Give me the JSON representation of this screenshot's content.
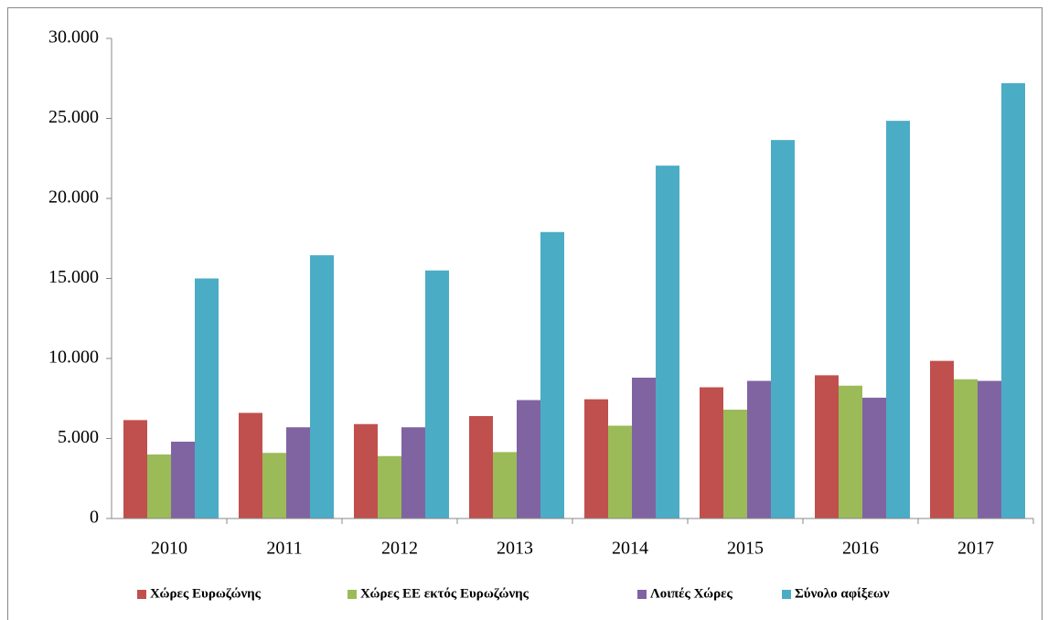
{
  "chart_data": {
    "type": "bar",
    "categories": [
      "2010",
      "2011",
      "2012",
      "2013",
      "2014",
      "2015",
      "2016",
      "2017"
    ],
    "series": [
      {
        "name": "Χώρες Ευρωζώνης",
        "color": "#c0504d",
        "values": [
          6150,
          6600,
          5900,
          6400,
          7450,
          8200,
          8950,
          9850
        ]
      },
      {
        "name": "Χώρες ΕΕ εκτός Ευρωζώνης",
        "color": "#9bbb59",
        "values": [
          4000,
          4100,
          3900,
          4150,
          5800,
          6800,
          8300,
          8700
        ]
      },
      {
        "name": "Λοιπές Χώρες",
        "color": "#8064a2",
        "values": [
          4800,
          5700,
          5700,
          7400,
          8800,
          8600,
          7550,
          8600
        ]
      },
      {
        "name": "Σύνολο αφίξεων",
        "color": "#4bacc6",
        "values": [
          15000,
          16450,
          15500,
          17900,
          22050,
          23650,
          24850,
          27200
        ]
      }
    ],
    "ylim": [
      0,
      30000
    ],
    "yticks": [
      0,
      {
        "value": 5000,
        "label": "5.000"
      },
      {
        "value": 10000,
        "label": "10.000"
      },
      {
        "value": 15000,
        "label": "15.000"
      },
      {
        "value": 20000,
        "label": "20.000"
      },
      {
        "value": 25000,
        "label": "25.000"
      },
      {
        "value": 30000,
        "label": "30.000"
      }
    ],
    "grid": false,
    "legend": "bottom"
  }
}
